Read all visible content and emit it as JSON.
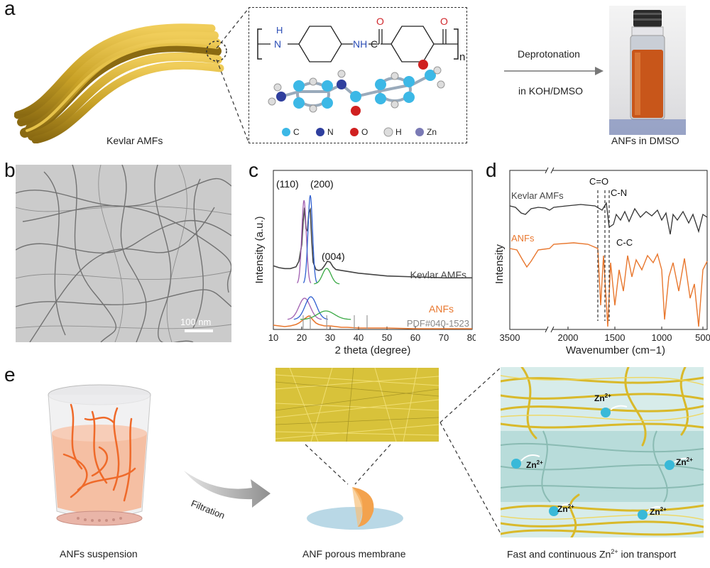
{
  "figure": {
    "panels": {
      "a": {
        "label": "a",
        "kevlar_caption": "Kevlar AMFs",
        "structure": {
          "nh": "H",
          "n": "N",
          "o": "O",
          "c": "C",
          "subscript": "n"
        },
        "legend": [
          "C",
          "N",
          "O",
          "H",
          "Zn"
        ],
        "arrow_top": "Deprotonation",
        "arrow_bottom": "in KOH/DMSO",
        "vial_caption": "ANFs in DMSO"
      },
      "b": {
        "label": "b",
        "scale_bar": "100 nm"
      },
      "c": {
        "label": "c"
      },
      "d": {
        "label": "d"
      },
      "e": {
        "label": "e",
        "beaker_caption": "ANFs suspension",
        "arrow_label": "Filtration",
        "membrane_caption": "ANF porous membrane",
        "transport_caption": "Fast and continuous Zn",
        "transport_caption_sup": "2+",
        "transport_caption_tail": " ion transport",
        "zn_labels": [
          "Zn",
          "Zn",
          "Zn",
          "Zn",
          "Zn",
          "Zn"
        ],
        "zn_sup": "2+"
      }
    },
    "colors": {
      "kevlar_gold": "#c9a227",
      "anf_orange": "#e8772e",
      "kevlar_grey": "#444444",
      "fit_purple": "#a05fb0",
      "fit_blue": "#2f5fd0",
      "fit_green": "#38a843",
      "ion_cyan": "#39b9d8"
    }
  },
  "chart_data": [
    {
      "type": "line",
      "panel": "c",
      "xlabel": "2 theta (degree)",
      "ylabel": "Intensity (a.u.)",
      "xlim": [
        10,
        80
      ],
      "xticks": [
        10,
        20,
        30,
        40,
        50,
        60,
        70,
        80
      ],
      "peak_labels": [
        "(110)",
        "(200)",
        "(004)"
      ],
      "series": [
        {
          "name": "Kevlar AMFs",
          "x": [
            10,
            12,
            14,
            16,
            18,
            19,
            20,
            20.5,
            21,
            21.5,
            22,
            22.5,
            23,
            23.5,
            24,
            25,
            26,
            27,
            28,
            29,
            30,
            31,
            32,
            34,
            36,
            40,
            50,
            60,
            70,
            80
          ],
          "y": [
            0.32,
            0.3,
            0.29,
            0.29,
            0.31,
            0.37,
            0.55,
            0.8,
            0.95,
            0.72,
            0.7,
            0.9,
            0.93,
            0.6,
            0.36,
            0.28,
            0.27,
            0.28,
            0.32,
            0.37,
            0.36,
            0.31,
            0.28,
            0.27,
            0.26,
            0.24,
            0.21,
            0.2,
            0.19,
            0.19
          ]
        },
        {
          "name": "ANFs",
          "x": [
            10,
            12,
            14,
            16,
            18,
            19,
            20,
            21,
            22,
            22.5,
            23,
            24,
            25,
            26,
            28,
            30,
            32,
            34,
            36,
            40,
            50,
            60,
            70,
            80
          ],
          "y": [
            0.1,
            0.09,
            0.08,
            0.09,
            0.11,
            0.13,
            0.16,
            0.19,
            0.22,
            0.23,
            0.22,
            0.17,
            0.13,
            0.11,
            0.09,
            0.09,
            0.08,
            0.07,
            0.07,
            0.06,
            0.06,
            0.05,
            0.05,
            0.05
          ]
        }
      ],
      "reference": {
        "name": "PDF#040-1523",
        "x": [
          20.5,
          23.0,
          28.8,
          38.5,
          43.0
        ]
      }
    },
    {
      "type": "line",
      "panel": "d",
      "xlabel": "Wavenumber (cm−1)",
      "ylabel": "Intensity",
      "x_reversed": true,
      "xticks": [
        "3500",
        "2000",
        "1500",
        "1000",
        "500"
      ],
      "annotations": [
        "C=O",
        "C-N",
        "C-C"
      ],
      "series": [
        {
          "name": "Kevlar AMFs"
        },
        {
          "name": "ANFs"
        }
      ]
    }
  ]
}
